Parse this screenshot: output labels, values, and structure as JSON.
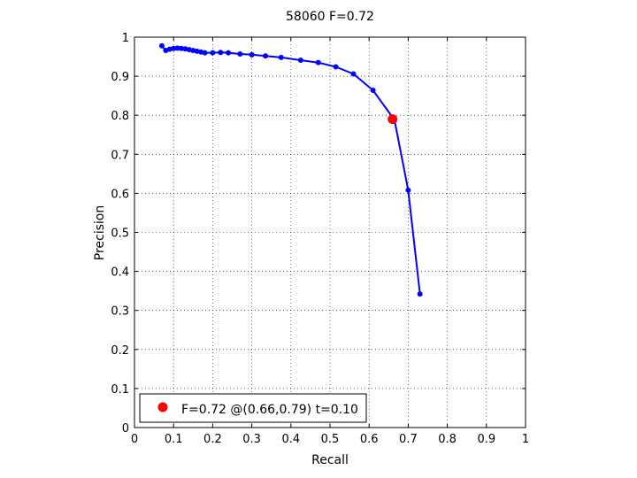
{
  "chart_data": {
    "type": "line",
    "title": "58060 F=0.72",
    "xlabel": "Recall",
    "ylabel": "Precision",
    "xlim": [
      0,
      1
    ],
    "ylim": [
      0,
      1
    ],
    "grid": true,
    "xticks": [
      "0",
      "0.1",
      "0.2",
      "0.3",
      "0.4",
      "0.5",
      "0.6",
      "0.7",
      "0.8",
      "0.9",
      "1"
    ],
    "yticks": [
      "0",
      "0.1",
      "0.2",
      "0.3",
      "0.4",
      "0.5",
      "0.6",
      "0.7",
      "0.8",
      "0.9",
      "1"
    ],
    "series": [
      {
        "color": "#0000ff",
        "x": [
          0.07,
          0.08,
          0.09,
          0.1,
          0.11,
          0.12,
          0.13,
          0.14,
          0.15,
          0.16,
          0.17,
          0.18,
          0.2,
          0.22,
          0.24,
          0.27,
          0.3,
          0.335,
          0.375,
          0.425,
          0.47,
          0.515,
          0.56,
          0.61,
          0.665,
          0.7,
          0.73
        ],
        "y": [
          0.978,
          0.966,
          0.969,
          0.971,
          0.972,
          0.971,
          0.97,
          0.968,
          0.966,
          0.964,
          0.962,
          0.96,
          0.96,
          0.961,
          0.96,
          0.957,
          0.955,
          0.952,
          0.948,
          0.941,
          0.935,
          0.924,
          0.906,
          0.864,
          0.788,
          0.608,
          0.342
        ]
      }
    ],
    "best_point": {
      "x": 0.66,
      "y": 0.79,
      "color": "#ff0000"
    },
    "legend": {
      "position": "bottom-left",
      "label": "F=0.72 @(0.66,0.79) t=0.10"
    }
  }
}
